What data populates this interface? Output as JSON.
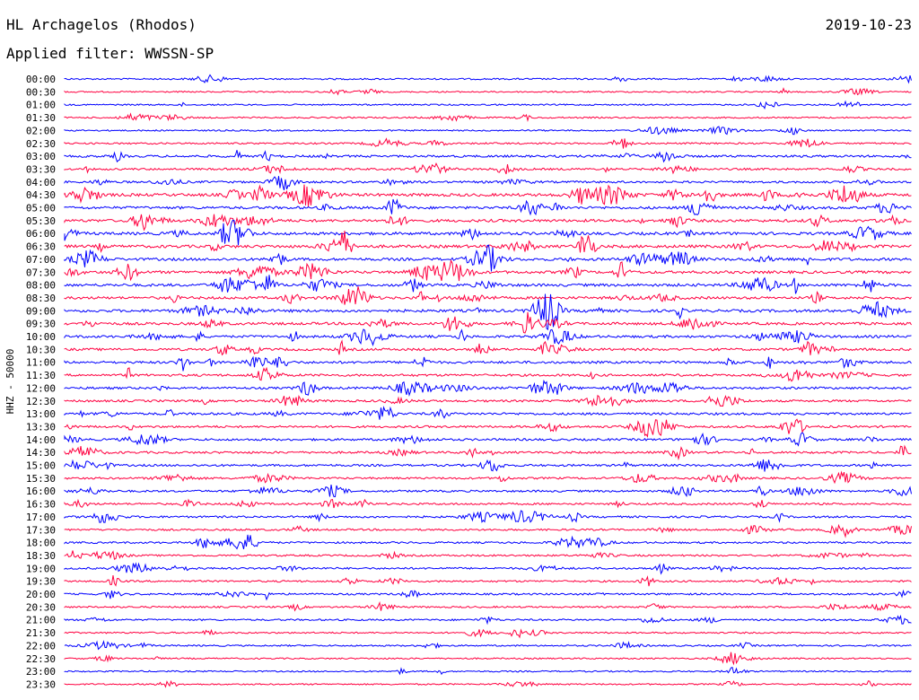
{
  "header": {
    "station": "HL Archagelos (Rhodos)",
    "filter": "Applied filter: WWSSN-SP",
    "date": "2019-10-23"
  },
  "chart_data": {
    "type": "line",
    "title": "HL Archagelos (Rhodos)",
    "subtitle": "Applied filter: WWSSN-SP",
    "ylabel": "HHZ - 50000",
    "xlabel": "",
    "row_ticks": [
      "00:00",
      "00:30",
      "01:00",
      "01:30",
      "02:00",
      "02:30",
      "03:00",
      "03:30",
      "04:00",
      "04:30",
      "05:00",
      "05:30",
      "06:00",
      "06:30",
      "07:00",
      "07:30",
      "08:00",
      "08:30",
      "09:00",
      "09:30",
      "10:00",
      "10:30",
      "11:00",
      "11:30",
      "12:00",
      "12:30",
      "13:00",
      "13:30",
      "14:00",
      "14:30",
      "15:00",
      "15:30",
      "16:00",
      "16:30",
      "17:00",
      "17:30",
      "18:00",
      "18:30",
      "19:00",
      "19:30",
      "20:00",
      "20:30",
      "21:00",
      "21:30",
      "22:00",
      "22:30",
      "23:00",
      "23:30"
    ],
    "colors": {
      "even_rows": "#0000ff",
      "odd_rows": "#ff0040"
    },
    "row_activity": [
      0.15,
      0.1,
      0.12,
      0.12,
      0.12,
      0.2,
      0.4,
      0.3,
      0.35,
      0.6,
      0.5,
      0.55,
      0.6,
      0.6,
      0.55,
      0.55,
      0.55,
      0.5,
      0.55,
      0.5,
      0.45,
      0.45,
      0.45,
      0.4,
      0.4,
      0.35,
      0.4,
      0.35,
      0.35,
      0.35,
      0.35,
      0.3,
      0.3,
      0.3,
      0.3,
      0.25,
      0.25,
      0.25,
      0.25,
      0.25,
      0.25,
      0.2,
      0.2,
      0.15,
      0.15,
      0.12,
      0.1,
      0.1
    ],
    "grid": false
  }
}
